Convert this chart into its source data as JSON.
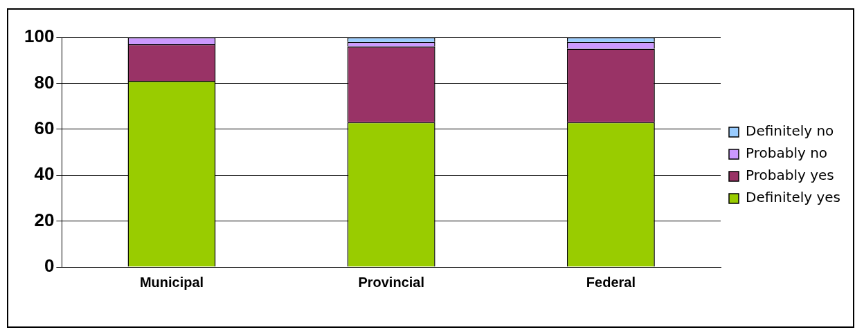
{
  "chart_data": {
    "type": "bar",
    "stacked": true,
    "categories": [
      "Municipal",
      "Provincial",
      "Federal"
    ],
    "series": [
      {
        "name": "Definitely yes",
        "color": "#99cc00",
        "values": [
          81,
          63,
          63
        ]
      },
      {
        "name": "Probably yes",
        "color": "#993366",
        "values": [
          16,
          33,
          32
        ]
      },
      {
        "name": "Probably no",
        "color": "#cc99ff",
        "values": [
          3,
          2,
          3
        ]
      },
      {
        "name": "Definitely no",
        "color": "#99ccff",
        "values": [
          0,
          2,
          2
        ]
      }
    ],
    "ylim": [
      0,
      100
    ],
    "yticks": [
      0,
      20,
      40,
      60,
      80,
      100
    ],
    "grid": "y",
    "legend": "right"
  }
}
